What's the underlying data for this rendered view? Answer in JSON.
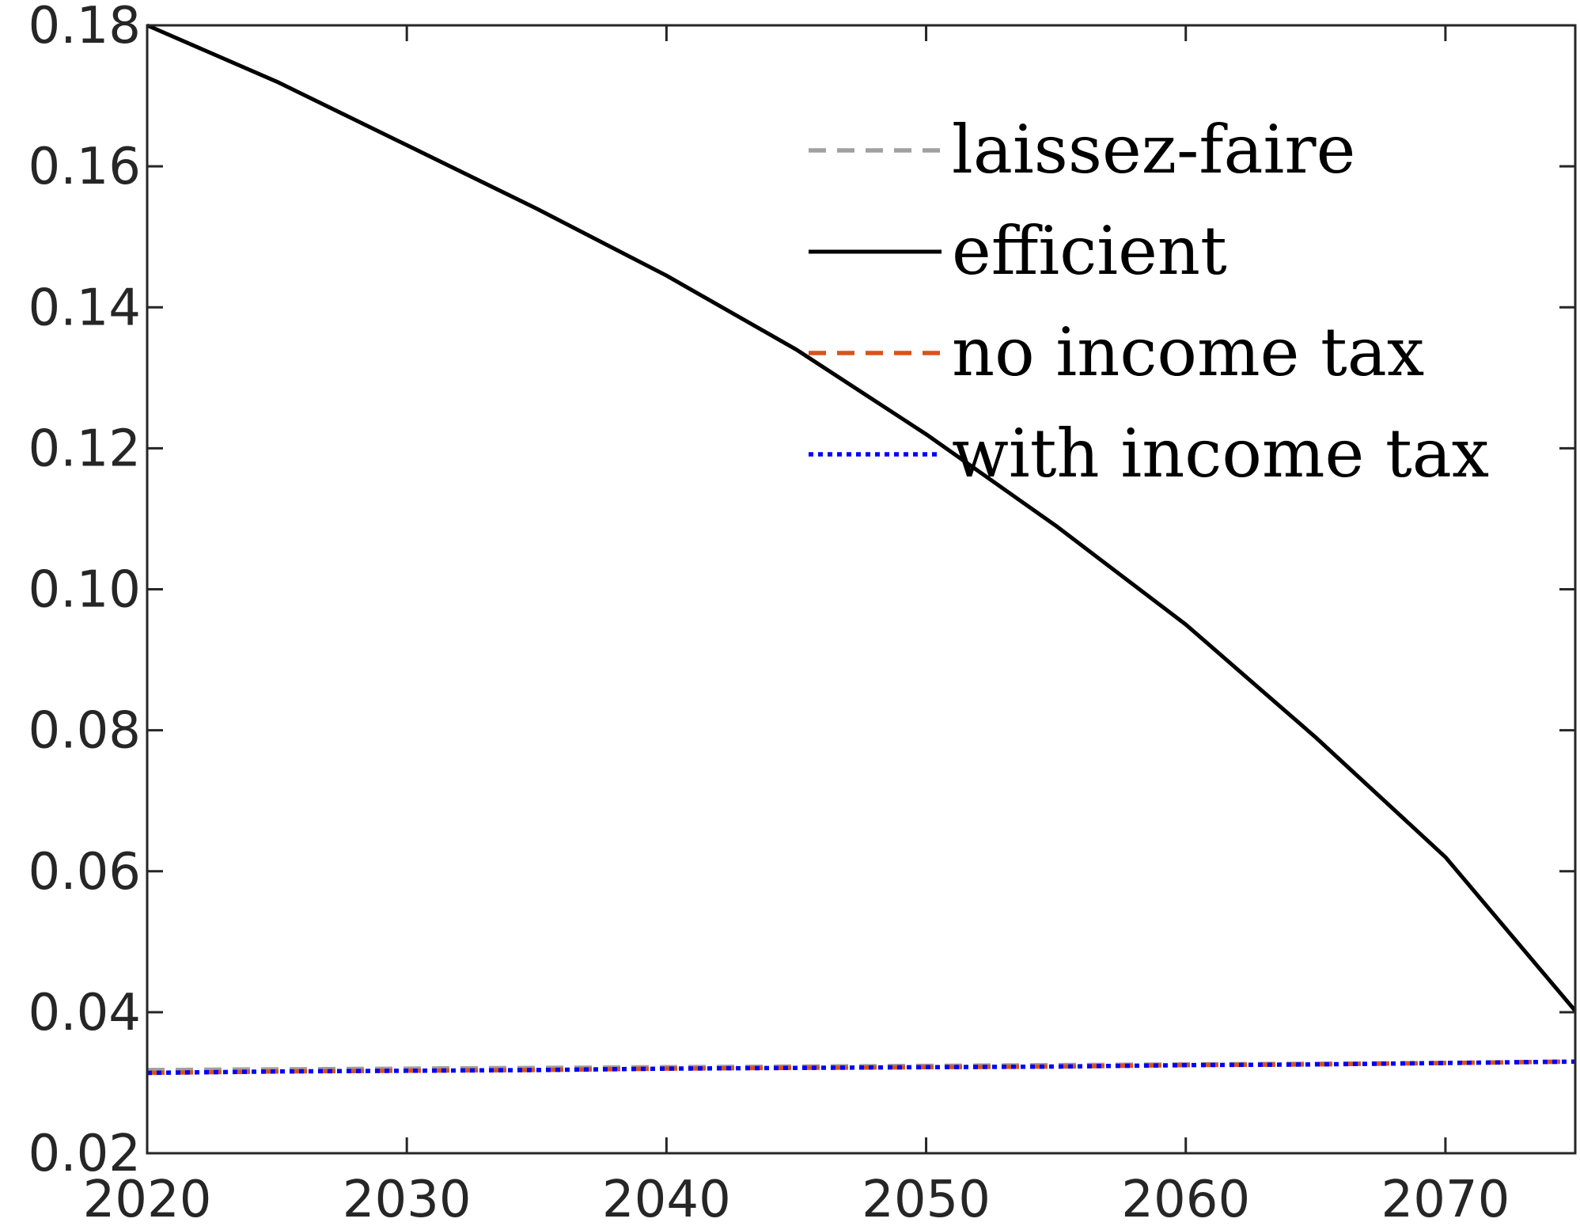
{
  "chart_data": {
    "type": "line",
    "title": "",
    "xlabel": "",
    "ylabel": "",
    "xlim": [
      2020,
      2075
    ],
    "ylim": [
      0.02,
      0.18
    ],
    "xticks": [
      2020,
      2030,
      2040,
      2050,
      2060,
      2070
    ],
    "xtick_labels": [
      "2020",
      "2030",
      "2040",
      "2050",
      "2060",
      "2070"
    ],
    "yticks": [
      0.02,
      0.04,
      0.06,
      0.08,
      0.1,
      0.12,
      0.14,
      0.16,
      0.18
    ],
    "ytick_labels": [
      "0.02",
      "0.04",
      "0.06",
      "0.08",
      "0.10",
      "0.12",
      "0.14",
      "0.16",
      "0.18"
    ],
    "grid": false,
    "legend_position": "top-right",
    "x": [
      2020,
      2025,
      2030,
      2035,
      2040,
      2045,
      2050,
      2055,
      2060,
      2065,
      2070,
      2075
    ],
    "series": [
      {
        "name": "laissez-faire",
        "color": "#a0a0a0",
        "dash": "dashed",
        "values": [
          0.0318,
          0.0319,
          0.032,
          0.0321,
          0.0322,
          0.0323,
          0.0324,
          0.0325,
          0.0326,
          0.0327,
          0.0328,
          0.033
        ]
      },
      {
        "name": "efficient",
        "color": "#000000",
        "dash": "solid",
        "values": [
          0.18,
          0.172,
          0.163,
          0.154,
          0.1445,
          0.134,
          0.122,
          0.109,
          0.095,
          0.079,
          0.062,
          0.0402
        ]
      },
      {
        "name": "no income tax",
        "color": "#d95319",
        "dash": "dashed",
        "values": [
          0.0314,
          0.0316,
          0.0317,
          0.0318,
          0.032,
          0.0321,
          0.0322,
          0.0323,
          0.0325,
          0.0326,
          0.0328,
          0.033
        ]
      },
      {
        "name": "with income tax",
        "color": "#0000ff",
        "dash": "dotted",
        "values": [
          0.0314,
          0.0316,
          0.0317,
          0.0318,
          0.032,
          0.0321,
          0.0322,
          0.0323,
          0.0325,
          0.0326,
          0.0328,
          0.033
        ]
      }
    ]
  }
}
